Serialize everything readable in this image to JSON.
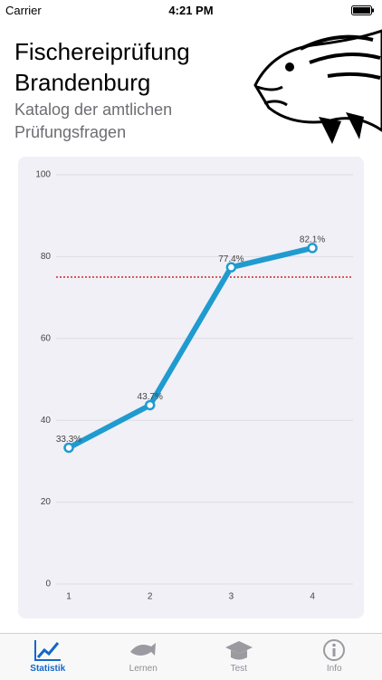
{
  "status_bar": {
    "carrier": "Carrier",
    "time": "4:21 PM"
  },
  "header": {
    "title": "Fischereiprüfung Brandenburg",
    "subtitle": "Katalog der amtlichen Prüfungsfragen"
  },
  "chart_data": {
    "type": "line",
    "categories": [
      "1",
      "2",
      "3",
      "4"
    ],
    "values": [
      33.3,
      43.7,
      77.4,
      82.1
    ],
    "value_labels": [
      "33.3%",
      "43.7%",
      "77.4%",
      "82.1%"
    ],
    "color": "#1f9bcf",
    "ylim": [
      0,
      100
    ],
    "yticks": [
      0,
      20,
      40,
      60,
      80,
      100
    ],
    "grid": true,
    "threshold": 75,
    "threshold_color": "#d0282a"
  },
  "tab_bar": {
    "items": [
      {
        "label": "Statistik"
      },
      {
        "label": "Lernen"
      },
      {
        "label": "Test"
      },
      {
        "label": "Info"
      }
    ]
  }
}
